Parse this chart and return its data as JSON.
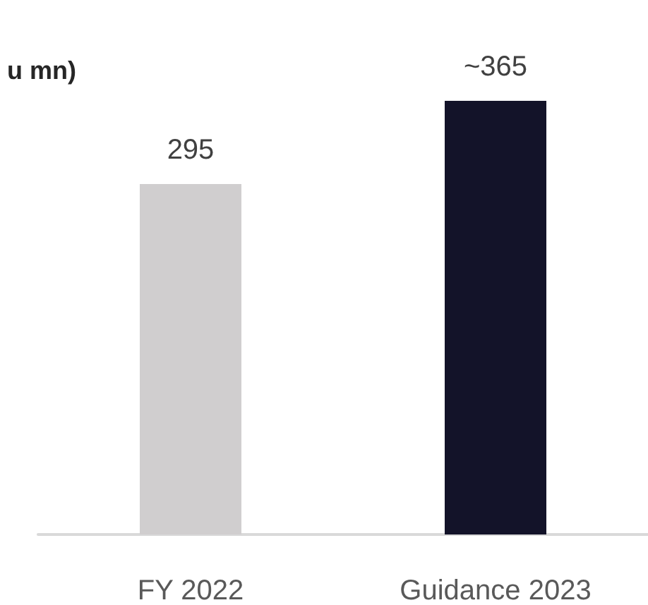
{
  "chart_data": {
    "type": "bar",
    "title": "u mn)",
    "categories": [
      "FY 2022",
      "Guidance 2023"
    ],
    "values": [
      295,
      365
    ],
    "colors": [
      "#d0cecf",
      "#131329"
    ],
    "value_labels": [
      "295",
      "~365"
    ]
  }
}
